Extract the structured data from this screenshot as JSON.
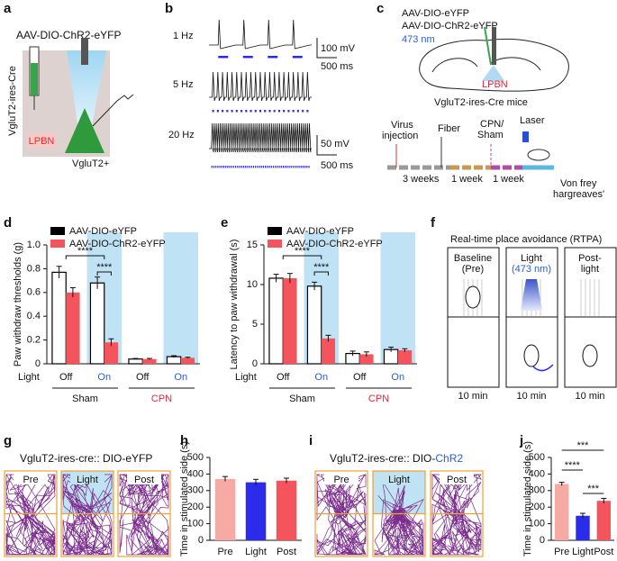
{
  "panel_labels": [
    "a",
    "b",
    "c",
    "d",
    "e",
    "f",
    "g",
    "h",
    "i",
    "j"
  ],
  "a": {
    "construct": "AAV-DIO-ChR2-eYFP",
    "mouse": "VgluT2-ires-Cre",
    "region": "LPBN",
    "cell": "VgluT2+"
  },
  "b": {
    "traces": [
      "1 Hz",
      "5 Hz",
      "20 Hz"
    ],
    "scale_top": [
      "100 mV",
      "500 ms"
    ],
    "scale_bottom": [
      "50 mV",
      "500 ms"
    ]
  },
  "c": {
    "viruses": [
      "AAV-DIO-eYFP",
      "AAV-DIO-ChR2-eYFP"
    ],
    "wavelength": "473 nm",
    "region": "LPBN",
    "mouse": "VgluT2-ires-Cre mice",
    "steps": [
      [
        "Virus",
        "injection"
      ],
      [
        "Fiber"
      ],
      [
        "CPN/",
        "Sham"
      ],
      [
        "Laser"
      ]
    ],
    "intervals": [
      "3 weeks",
      "1 week",
      "1 week"
    ],
    "tests": [
      "Von frey",
      "hargreaves'"
    ]
  },
  "f": {
    "title": "Real-time place avoidance (RTPA)",
    "phases": [
      [
        "Baseline",
        "(Pre)"
      ],
      [
        "Light",
        "(473 nm)"
      ],
      [
        "Post-",
        "light"
      ]
    ],
    "durations": [
      "10 min",
      "10 min",
      "10 min"
    ]
  },
  "g": {
    "title": "VgluT2-ires-cre:: DIO-eYFP",
    "phases": [
      "Pre",
      "Light",
      "Post"
    ]
  },
  "i": {
    "title": "VgluT2-ires-cre:: DIO-",
    "title_highlight": "ChR2",
    "phases": [
      "Pre",
      "Light",
      "Post"
    ]
  },
  "chart_data": [
    {
      "type": "bar",
      "y_label": "Paw withdraw thresholds (g)",
      "x_row_label": "Light",
      "categories": [
        "Off",
        "On",
        "Off",
        "On"
      ],
      "groups": [
        "Sham",
        "CPN"
      ],
      "series": [
        {
          "name": "AAV-DIO-eYFP",
          "color": "#000000",
          "values": [
            0.77,
            0.68,
            0.04,
            0.06
          ],
          "errors": [
            0.05,
            0.05,
            0.005,
            0.008
          ]
        },
        {
          "name": "AAV-DIO-ChR2-eYFP",
          "color": "#f4545c",
          "values": [
            0.6,
            0.18,
            0.04,
            0.05
          ],
          "errors": [
            0.04,
            0.03,
            0.005,
            0.005
          ]
        }
      ],
      "ylim": [
        0,
        1
      ],
      "yticks": [
        0,
        0.2,
        0.4,
        0.6,
        0.8,
        {
          "value": 1,
          "label": "1.0"
        }
      ],
      "annotations": [
        "****",
        "****"
      ]
    },
    {
      "type": "bar",
      "y_label": "Latency to paw withdrawal (s)",
      "x_row_label": "Light",
      "categories": [
        "Off",
        "On",
        "Off",
        "On"
      ],
      "groups": [
        "Sham",
        "CPN"
      ],
      "series": [
        {
          "name": "AAV-DIO-eYFP",
          "color": "#000000",
          "values": [
            10.8,
            9.8,
            1.3,
            1.8
          ],
          "errors": [
            0.5,
            0.5,
            0.3,
            0.3
          ]
        },
        {
          "name": "AAV-DIO-ChR2-eYFP",
          "color": "#f4545c",
          "values": [
            10.8,
            3.2,
            1.2,
            1.7
          ],
          "errors": [
            0.6,
            0.4,
            0.3,
            0.2
          ]
        }
      ],
      "ylim": [
        0,
        15
      ],
      "yticks": [
        0,
        5,
        10,
        15
      ],
      "annotations": [
        "****",
        "****"
      ]
    },
    {
      "type": "bar",
      "y_label": "Time in stimulated side (s)",
      "categories": [
        "Pre",
        "Light",
        "Post"
      ],
      "values": [
        370,
        350,
        360
      ],
      "errors": [
        15,
        18,
        15
      ],
      "colors": [
        "#f7aaa4",
        "#2b2bea",
        "#f4545c"
      ],
      "ylim": [
        0,
        500
      ],
      "yticks": [
        0,
        100,
        200,
        300,
        400,
        500
      ]
    },
    {
      "type": "bar",
      "y_label": "Time in stimulated side (s)",
      "categories": [
        "Pre",
        "Light",
        "Post"
      ],
      "values": [
        340,
        148,
        238
      ],
      "errors": [
        10,
        15,
        15
      ],
      "colors": [
        "#f7aaa4",
        "#2b2bea",
        "#f4545c"
      ],
      "ylim": [
        0,
        500
      ],
      "yticks": [
        0,
        100,
        200,
        300,
        400,
        500
      ],
      "annotations": [
        "****",
        "***",
        "***"
      ]
    }
  ]
}
